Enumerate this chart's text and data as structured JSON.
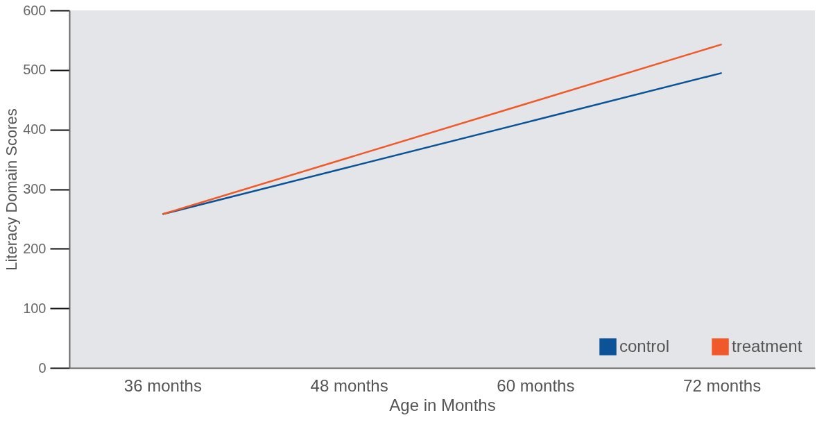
{
  "chart_data": {
    "type": "line",
    "xlabel": "Age in Months",
    "ylabel": "Literacy Domain  Scores",
    "categories": [
      "36 months",
      "48 months",
      "60 months",
      "72 months"
    ],
    "series": [
      {
        "name": "control",
        "color": "#0b5396",
        "values": [
          258,
          337,
          416,
          495
        ]
      },
      {
        "name": "treatment",
        "color": "#f05a2a",
        "values": [
          258,
          353,
          448,
          543
        ]
      }
    ],
    "ylim": [
      0,
      600
    ],
    "yticks": [
      0,
      100,
      200,
      300,
      400,
      500,
      600
    ],
    "grid": false,
    "legend": "bottom right",
    "marker": "none",
    "line_style": "solid"
  }
}
